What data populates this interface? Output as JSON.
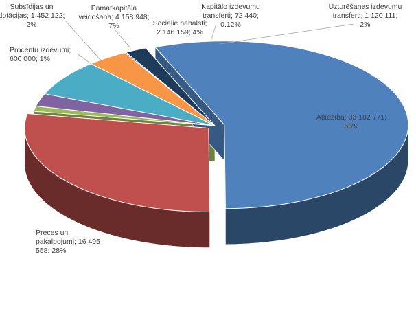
{
  "chart_data": {
    "type": "pie",
    "style": "3d-exploded",
    "title": "",
    "slices": [
      {
        "key": "atlidziba",
        "value": 33182771,
        "percent": 56,
        "color": "#4f81bd",
        "label_lines": [
          "Atlīdzība; 33 182 771;",
          "56%"
        ]
      },
      {
        "key": "preces",
        "value": 16495558,
        "percent": 28,
        "color": "#c0504d",
        "label_lines": [
          "Preces un",
          "pakalpojumi; 16 495",
          "558; 28%"
        ]
      },
      {
        "key": "procentu",
        "value": 600000,
        "percent": 1,
        "color": "#9bbb59",
        "label_lines": [
          "Procentu izdevumi;",
          "600 000; 1%"
        ]
      },
      {
        "key": "subsidijas",
        "value": 1452122,
        "percent": 2,
        "color": "#8064a2",
        "label_lines": [
          "Subsīdijas un",
          "dotācijas; 1 452 122;",
          "2%"
        ]
      },
      {
        "key": "pamatkapitala",
        "value": 4158948,
        "percent": 7,
        "color": "#4bacc6",
        "label_lines": [
          "Pamatkapitāla",
          "veidošana; 4 158 948;",
          "7%"
        ]
      },
      {
        "key": "socialie",
        "value": 2146159,
        "percent": 4,
        "color": "#f79646",
        "label_lines": [
          "Sociālie pabalsti;",
          "2 146 159; 4%"
        ]
      },
      {
        "key": "kapitalo",
        "value": 72440,
        "percent": 0.12,
        "color": "#2c4d75",
        "label_lines": [
          "Kapitālo izdevumu",
          "transferti; 72 440;",
          "0.12%"
        ]
      },
      {
        "key": "uzturesanas",
        "value": 1120111,
        "percent": 2,
        "color": "#1f3b5c",
        "label_lines": [
          "Uzturēšanas izdevumu",
          "transferti; 1 120 111;",
          "2%"
        ]
      }
    ],
    "legend": "none",
    "labels": "category; value; percent"
  }
}
